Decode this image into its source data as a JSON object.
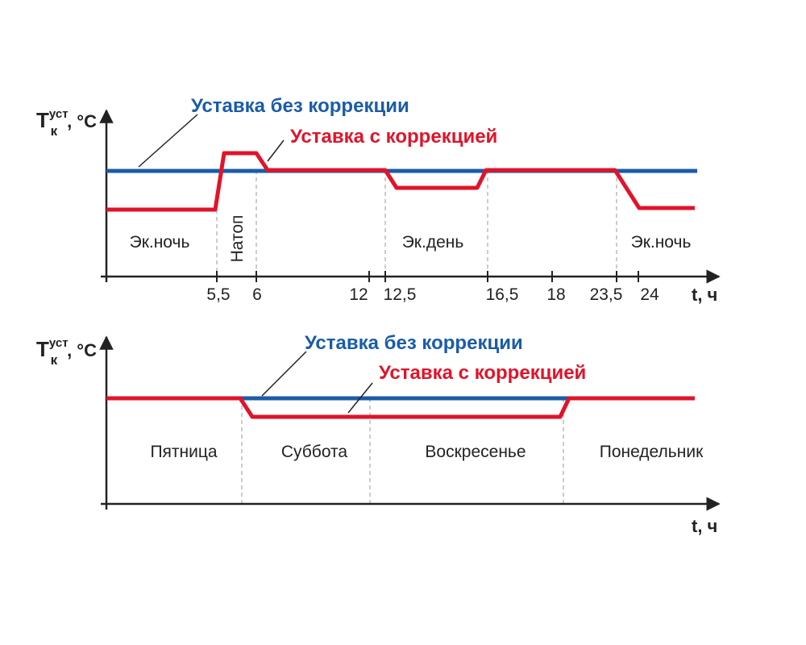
{
  "top": {
    "y_label": "T",
    "y_sub": "к",
    "y_sup": "уст",
    "y_unit": ", °C",
    "x_label": "t, ч",
    "legend_plain": "Уставка без коррекции",
    "legend_corrected": "Уставка с коррекцией",
    "ticks": [
      "5,5",
      "6",
      "12",
      "12,5",
      "16,5",
      "18",
      "23,5",
      "24"
    ],
    "zones": [
      "Эк.ночь",
      "Натоп",
      "Эк.день",
      "Эк.ночь"
    ]
  },
  "bottom": {
    "y_label": "T",
    "y_sub": "к",
    "y_sup": "уст",
    "y_unit": ", °C",
    "x_label": "t, ч",
    "legend_plain": "Уставка без коррекции",
    "legend_corrected": "Уставка с коррекцией",
    "zones": [
      "Пятница",
      "Суббота",
      "Воскресенье",
      "Понедельник"
    ]
  }
}
